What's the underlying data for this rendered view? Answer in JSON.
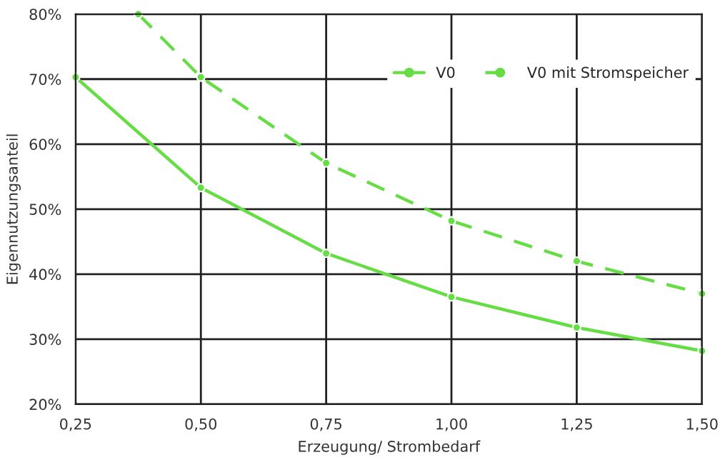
{
  "chart_data": {
    "type": "line",
    "xlabel": "Erzeugung/ Strombedarf",
    "ylabel": "Eigennutzungsanteil",
    "x": [
      0.25,
      0.5,
      0.75,
      1.0,
      1.25,
      1.5
    ],
    "series": [
      {
        "name": "V0",
        "color": "#66dd44",
        "line_style": "solid",
        "values": [
          70.3,
          53.3,
          43.2,
          36.5,
          31.8,
          28.2
        ]
      },
      {
        "name": "V0 mit Stromspeicher",
        "color": "#66dd44",
        "line_style": "dashed",
        "x": [
          0.375,
          0.5,
          0.75,
          1.0,
          1.25,
          1.5
        ],
        "values": [
          80,
          70.3,
          57.1,
          48.2,
          42.0,
          37.0
        ]
      }
    ],
    "xlim": [
      0.25,
      1.5
    ],
    "xticks": [
      {
        "value": 0.25,
        "label": "0,25"
      },
      {
        "value": 0.5,
        "label": "0,50"
      },
      {
        "value": 0.75,
        "label": "0,75"
      },
      {
        "value": 1.0,
        "label": "1,00"
      },
      {
        "value": 1.25,
        "label": "1,25"
      },
      {
        "value": 1.5,
        "label": "1,50"
      }
    ],
    "ylim": [
      20,
      80
    ],
    "yticks": [
      {
        "value": 20,
        "label": "20%"
      },
      {
        "value": 30,
        "label": "30%"
      },
      {
        "value": 40,
        "label": "40%"
      },
      {
        "value": 50,
        "label": "50%"
      },
      {
        "value": 60,
        "label": "60%"
      },
      {
        "value": 70,
        "label": "70%"
      },
      {
        "value": 80,
        "label": "80%"
      }
    ],
    "grid": true,
    "legend": "top right",
    "marker": "circle"
  }
}
